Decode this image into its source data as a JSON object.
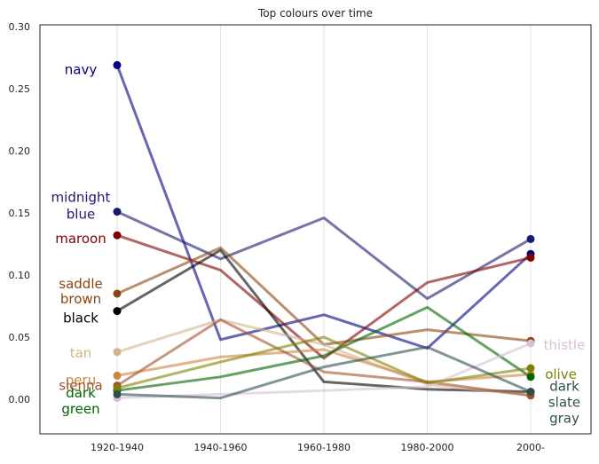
{
  "chart_data": {
    "type": "line",
    "title": "Top colours over time",
    "xlabel": "",
    "ylabel": "",
    "categories": [
      "1920-1940",
      "1940-1960",
      "1960-1980",
      "1980-2000",
      "2000-"
    ],
    "ylim": [
      -0.028,
      0.3
    ],
    "yticks": [
      "0.00",
      "0.05",
      "0.10",
      "0.15",
      "0.20",
      "0.25",
      "0.30"
    ],
    "grid": "vertical",
    "series": [
      {
        "name": "navy",
        "color": "#000080",
        "values": [
          0.269,
          0.048,
          0.068,
          0.041,
          0.117
        ],
        "label_side": "left",
        "label_lines": [
          "navy"
        ]
      },
      {
        "name": "midnight blue",
        "color": "#191970",
        "values": [
          0.151,
          0.113,
          0.146,
          0.081,
          0.129
        ],
        "label_side": "left",
        "label_lines": [
          "midnight",
          "blue"
        ]
      },
      {
        "name": "maroon",
        "color": "#800000",
        "values": [
          0.132,
          0.104,
          0.033,
          0.094,
          0.114
        ],
        "label_side": "left",
        "label_lines": [
          "maroon"
        ]
      },
      {
        "name": "saddle brown",
        "color": "#8B4513",
        "values": [
          0.085,
          0.122,
          0.044,
          0.056,
          0.047
        ],
        "label_side": "left",
        "label_lines": [
          "saddle",
          "brown"
        ]
      },
      {
        "name": "black",
        "color": "#000000",
        "values": [
          0.071,
          0.12,
          0.014,
          0.008,
          0.006
        ],
        "label_side": "left",
        "label_lines": [
          "black"
        ]
      },
      {
        "name": "tan",
        "color": "#D2B48C",
        "values": [
          0.038,
          0.064,
          0.044,
          0.012,
          0.003
        ],
        "label_side": "left",
        "label_lines": [
          "tan"
        ]
      },
      {
        "name": "peru",
        "color": "#CD853F",
        "values": [
          0.019,
          0.034,
          0.04,
          0.014,
          0.02
        ],
        "label_side": "left",
        "label_lines": [
          "peru"
        ]
      },
      {
        "name": "sienna",
        "color": "#A0522D",
        "values": [
          0.011,
          0.064,
          0.022,
          0.014,
          0.003
        ],
        "label_side": "left",
        "label_lines": [
          "sienna"
        ]
      },
      {
        "name": "dark green",
        "color": "#006400",
        "values": [
          0.007,
          0.018,
          0.035,
          0.074,
          0.018
        ],
        "label_side": "left",
        "label_lines": [
          "dark",
          "green"
        ]
      },
      {
        "name": "thistle",
        "color": "#D8BFD8",
        "values": [
          0.001,
          0.004,
          0.007,
          0.01,
          0.045
        ],
        "label_side": "right",
        "label_lines": [
          "thistle"
        ]
      },
      {
        "name": "olive",
        "color": "#808000",
        "values": [
          0.009,
          0.03,
          0.05,
          0.013,
          0.025
        ],
        "label_side": "right",
        "label_lines": [
          "olive"
        ]
      },
      {
        "name": "dark slate gray",
        "color": "#2F4F4F",
        "values": [
          0.004,
          0.001,
          0.026,
          0.042,
          0.006
        ],
        "label_side": "right",
        "label_lines": [
          "dark",
          "slate",
          "gray"
        ]
      }
    ]
  }
}
